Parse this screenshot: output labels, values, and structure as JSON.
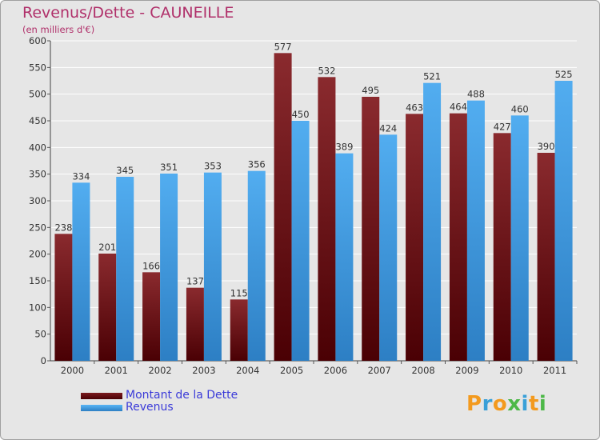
{
  "chart_data": {
    "type": "bar",
    "title": "Revenus/Dette - CAUNEILLE",
    "subtitle": "(en milliers d'€)",
    "categories": [
      "2000",
      "2001",
      "2002",
      "2003",
      "2004",
      "2005",
      "2006",
      "2007",
      "2008",
      "2009",
      "2010",
      "2011"
    ],
    "series": [
      {
        "name": "Montant de la Dette",
        "color": "#6b1014",
        "values": [
          238,
          201,
          166,
          137,
          115,
          577,
          532,
          495,
          463,
          464,
          427,
          390
        ]
      },
      {
        "name": "Revenus",
        "color": "#4aa3e8",
        "values": [
          334,
          345,
          351,
          353,
          356,
          450,
          389,
          424,
          521,
          488,
          460,
          525
        ]
      }
    ],
    "ylim": [
      0,
      600
    ],
    "yticks": [
      0,
      50,
      100,
      150,
      200,
      250,
      300,
      350,
      400,
      450,
      500,
      550,
      600
    ],
    "grid": true,
    "legend": "bottom-left"
  },
  "legend": {
    "debt_label": "Montant de la Dette",
    "revenue_label": "Revenus"
  },
  "logo": {
    "text": "Proxiti"
  }
}
